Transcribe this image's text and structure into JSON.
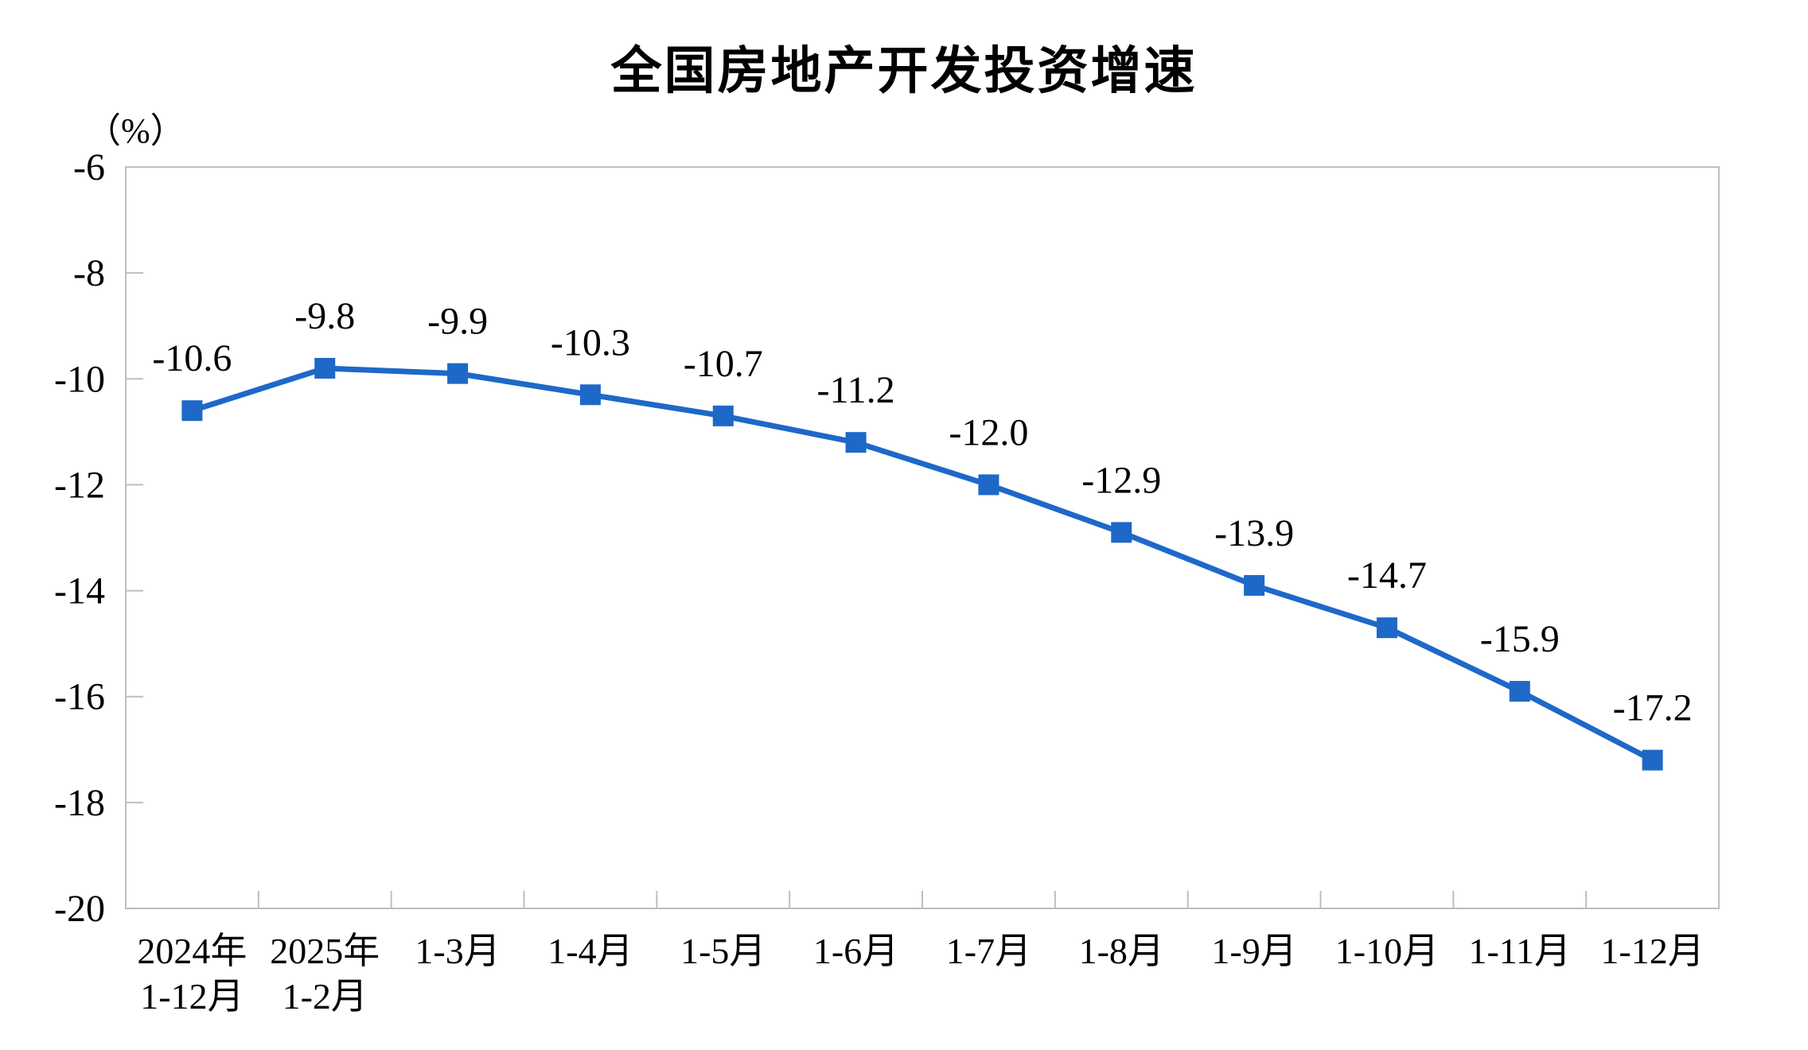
{
  "page": {
    "background_color": "#ffffff"
  },
  "chart_data": {
    "type": "line",
    "title": "全国房地产开发投资增速",
    "unit_label": "（%）",
    "categories": [
      "2024年\n1-12月",
      "2025年\n1-2月",
      "1-3月",
      "1-4月",
      "1-5月",
      "1-6月",
      "1-7月",
      "1-8月",
      "1-9月",
      "1-10月",
      "1-11月",
      "1-12月"
    ],
    "values": [
      -10.6,
      -9.8,
      -9.9,
      -10.3,
      -10.7,
      -11.2,
      -12.0,
      -12.9,
      -13.9,
      -14.7,
      -15.9,
      -17.2
    ],
    "data_labels": [
      "-10.6",
      "-9.8",
      "-9.9",
      "-10.3",
      "-10.7",
      "-11.2",
      "-12.0",
      "-12.9",
      "-13.9",
      "-14.7",
      "-15.9",
      "-17.2"
    ],
    "ylim": [
      -20,
      -6
    ],
    "y_ticks": [
      -6,
      -8,
      -10,
      -12,
      -14,
      -16,
      -18,
      -20
    ],
    "y_tick_labels": [
      "-6",
      "-8",
      "-10",
      "-12",
      "-14",
      "-16",
      "-18",
      "-20"
    ],
    "xlabel": "",
    "ylabel": "（%）",
    "grid": false,
    "legend_position": "none",
    "marker_shape": "square",
    "line_color": "#1E68C8",
    "marker_color": "#1E68C8",
    "axis_color": "#BEBEBE",
    "text_color": "#000000"
  }
}
